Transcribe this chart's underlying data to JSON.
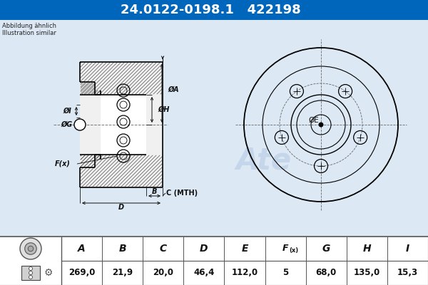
{
  "part_number": "24.0122-0198.1",
  "alt_number": "422198",
  "note_line1": "Abbildung ähnlich",
  "note_line2": "Illustration similar",
  "header_bg": "#0066bb",
  "header_text_color": "#ffffff",
  "bg_color": "#c8daea",
  "diagram_bg": "#dce8f0",
  "table_bg": "#ffffff",
  "col_headers": [
    "A",
    "B",
    "C",
    "D",
    "E",
    "F(x)",
    "G",
    "H",
    "I"
  ],
  "col_values": [
    "269,0",
    "21,9",
    "20,0",
    "46,4",
    "112,0",
    "5",
    "68,0",
    "135,0",
    "15,3"
  ],
  "line_color": "#000000",
  "hatch_color": "#444444",
  "dim_color": "#111111"
}
